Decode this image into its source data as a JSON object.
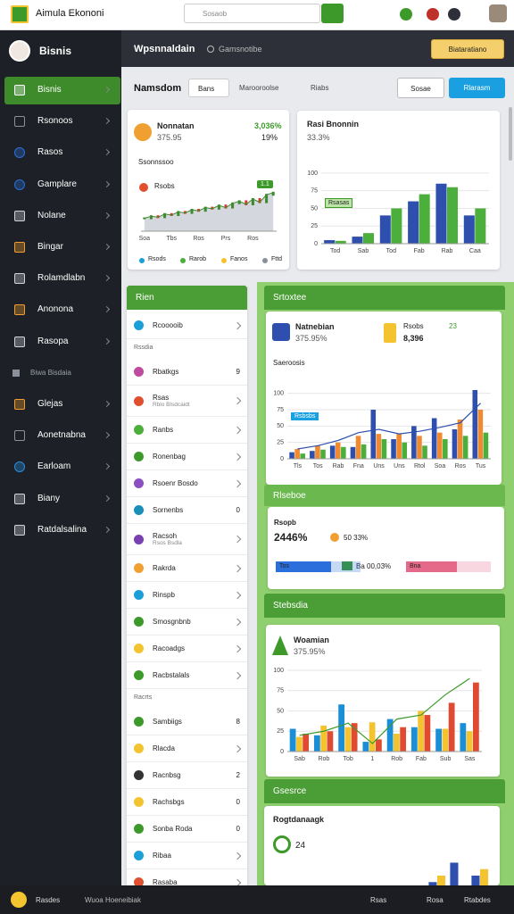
{
  "topbar": {
    "app_title": "Aimula Ekononi",
    "search_placeholder": "Sosaob"
  },
  "sidebar": {
    "brand": "Bisnis",
    "items": [
      {
        "label": "Bisnis",
        "active": true,
        "icon_color": "#ffffff"
      },
      {
        "label": "Rsonoos",
        "icon_color": "#8a8f99"
      },
      {
        "label": "Rasos",
        "icon_color": "#2a6fdb"
      },
      {
        "label": "Gamplare",
        "icon_color": "#2a6fdb"
      },
      {
        "label": "Nolane",
        "icon_color": "#cfd3da"
      },
      {
        "label": "Bingar",
        "icon_color": "#f0a030"
      },
      {
        "label": "Rolamdlabn",
        "icon_color": "#cfd3da"
      },
      {
        "label": "Anonona",
        "icon_color": "#f0a030"
      },
      {
        "label": "Rasopa",
        "icon_color": "#cfd3da"
      },
      {
        "label": "Biwa Bisdaia",
        "section": true,
        "icon_color": "#8a8f99"
      },
      {
        "label": "Glejas",
        "icon_color": "#f0a030"
      },
      {
        "label": "Aonetnabna",
        "icon_color": "#8a8f99"
      },
      {
        "label": "Earloam",
        "icon_color": "#2a8fe0"
      },
      {
        "label": "Biany",
        "icon_color": "#cfd3da"
      },
      {
        "label": "Ratdalsalina",
        "icon_color": "#cfd3da"
      }
    ]
  },
  "header": {
    "title": "Wpsnnaldain",
    "subtitle": "Gamsnotibe",
    "button": "Biataratiano"
  },
  "toolbar": {
    "title": "Namsdom",
    "dropdown": "Bans",
    "filter": "Marooroolse",
    "link": "Riabs",
    "button_1": "Sosae",
    "button_2": "Rlarasm"
  },
  "card_stock": {
    "title": "Nonnatan",
    "value": "375.95",
    "change": "3,036%",
    "change_2": "19%",
    "subtitle": "Ssonnssoo",
    "chart_label": "Rsobs",
    "chart": {
      "type": "line",
      "color": "#3c8a2e",
      "annotation": "1.1",
      "categories": [
        "Soa",
        null,
        null,
        null,
        "Tbs",
        null,
        null,
        null,
        "Ros",
        null,
        null,
        null,
        "Prs",
        null,
        null,
        null,
        "Ros",
        null,
        null,
        null
      ],
      "values": [
        12,
        14,
        13,
        16,
        15,
        18,
        17,
        20,
        19,
        22,
        21,
        24,
        22,
        26,
        28,
        25,
        30,
        27,
        34,
        36
      ],
      "ylim": [
        0,
        45
      ]
    },
    "legend": [
      {
        "label": "Rsods",
        "color": "#1a9fd8"
      },
      {
        "label": "Rarob",
        "color": "#4caf3c"
      },
      {
        "label": "Fanos",
        "color": "#f4c430"
      },
      {
        "label": "Fttd",
        "color": "#8a8f99"
      }
    ]
  },
  "card_bars": {
    "title": "Rasi Bnonnin",
    "value": "33.3%",
    "chart": {
      "type": "bar",
      "annotation": "Rsasas",
      "categories": [
        "Tod",
        "Sab",
        "Tod",
        "Fab",
        "Rab",
        "Caa"
      ],
      "series": [
        {
          "color": "#2f4fae",
          "values": [
            5,
            10,
            40,
            60,
            85,
            40
          ]
        },
        {
          "color": "#4caf3c",
          "values": [
            4,
            15,
            50,
            70,
            80,
            50
          ]
        }
      ],
      "ylim": [
        0,
        110
      ],
      "yticks": [
        0,
        25,
        50,
        75,
        100
      ]
    }
  },
  "list_panel": {
    "title": "Rien",
    "items": [
      {
        "label": "Rcooooib",
        "color": "#1a9fd8"
      },
      {
        "label": "Rssdia",
        "section": true
      },
      {
        "label": "Rbatkgs",
        "meta": "9",
        "color": "#c04aa0"
      },
      {
        "label": "Rsas",
        "sub": "Rblo Blsdcaidt",
        "color": "#e05030"
      },
      {
        "label": "Ranbs",
        "color": "#4caf3c"
      },
      {
        "label": "Ronenbag",
        "color": "#3d9a2a"
      },
      {
        "label": "Rsoenr Bosdo",
        "color": "#8a4fc0"
      },
      {
        "label": "Sornenbs",
        "meta": "0",
        "color": "#1a8fb8"
      },
      {
        "label": "Racsoh",
        "sub": "Rsos Bsdla",
        "color": "#7a3fb0"
      },
      {
        "label": "Rakrda",
        "color": "#f0a030"
      },
      {
        "label": "Rinspb",
        "color": "#1a9fd8"
      },
      {
        "label": "Smosgnbnb",
        "color": "#3d9a2a"
      },
      {
        "label": "Racoadgs",
        "color": "#f4c430"
      },
      {
        "label": "Racbstalals",
        "color": "#3d9a2a"
      },
      {
        "label": "Racrts",
        "section": true
      },
      {
        "label": "Sambiigs",
        "meta": "8",
        "color": "#3d9a2a"
      },
      {
        "label": "Rlacda",
        "color": "#f4c430"
      },
      {
        "label": "Racnbsg",
        "meta": "2",
        "color": "#333333"
      },
      {
        "label": "Rachsbgs",
        "meta": "0",
        "color": "#f4c430"
      },
      {
        "label": "Sonba Roda",
        "meta": "0",
        "color": "#3d9a2a"
      },
      {
        "label": "Ribaa",
        "color": "#1a9fd8"
      },
      {
        "label": "Rasaba",
        "color": "#e05030"
      }
    ]
  },
  "panel_trend": {
    "title": "Srtoxtee",
    "card_title": "Natnebian",
    "card_value": "375.95%",
    "info_label": "Rsobs",
    "info_value": "8,396",
    "info_meta": "23",
    "chart_title": "Saeroosis",
    "chart": {
      "type": "bar",
      "annotation": "Rsbsbs",
      "categories": [
        "Tls",
        "Tos",
        "Rab",
        "Fna",
        "Uns",
        "Uns",
        "Rtol",
        "Soa",
        "Ros",
        "Tus"
      ],
      "series": [
        {
          "color": "#2f4fae",
          "values": [
            10,
            12,
            20,
            18,
            75,
            30,
            50,
            62,
            45,
            105
          ]
        },
        {
          "color": "#f08a30",
          "values": [
            15,
            20,
            25,
            35,
            38,
            38,
            35,
            40,
            60,
            75
          ]
        },
        {
          "color": "#4caf3c",
          "values": [
            8,
            14,
            18,
            22,
            30,
            25,
            20,
            30,
            35,
            40
          ]
        },
        {
          "type": "line",
          "color": "#2f4fae",
          "values": [
            15,
            20,
            28,
            40,
            45,
            38,
            42,
            48,
            55,
            85
          ]
        }
      ],
      "ylim": [
        0,
        120
      ],
      "yticks": [
        0,
        25,
        50,
        75,
        100
      ]
    }
  },
  "panel_stats": {
    "title": "Rlseboe",
    "label": "Rsopb",
    "value": "2446%",
    "value_2": "50 33%",
    "value_3": "Ba 00,03%",
    "progress": [
      {
        "label": "Tos",
        "value": 65,
        "color": "#2a6fdb"
      },
      {
        "label": "Bna",
        "value": 60,
        "color": "#e56a8a"
      }
    ]
  },
  "panel_chart": {
    "title": "Stebsdia",
    "card_title": "Woamian",
    "card_value": "375.95%",
    "chart": {
      "type": "bar",
      "categories": [
        "Sab",
        "Rob",
        "Tob",
        "1",
        "Rob",
        "Fab",
        "Sub",
        "Sas"
      ],
      "series": [
        {
          "color": "#1a8fd8",
          "values": [
            28,
            20,
            58,
            12,
            40,
            30,
            28,
            35
          ]
        },
        {
          "color": "#f4c430",
          "values": [
            18,
            32,
            30,
            36,
            22,
            50,
            28,
            25
          ]
        },
        {
          "color": "#e04a30",
          "values": [
            22,
            25,
            35,
            15,
            30,
            45,
            60,
            85
          ]
        },
        {
          "type": "line",
          "color": "#3d9a2a",
          "values": [
            20,
            25,
            35,
            10,
            40,
            45,
            70,
            90
          ]
        }
      ],
      "ylim": [
        0,
        100
      ],
      "yticks": [
        0,
        25,
        50,
        75,
        100
      ]
    }
  },
  "panel_bottom": {
    "title": "Gsesrce",
    "card_title": "Rogtdanaagk",
    "value": "24",
    "chart": {
      "type": "bar",
      "categories": [
        null,
        null,
        null,
        null,
        null
      ],
      "series": [
        {
          "color": "#2f4fae",
          "values": [
            5,
            8,
            15,
            30,
            20
          ]
        },
        {
          "color": "#f4c430",
          "values": [
            3,
            10,
            20,
            12,
            25
          ]
        }
      ],
      "ylim": [
        0,
        40
      ]
    }
  },
  "bottombar": {
    "left": "Rasdes",
    "search": "Wuoa Hoeneibiak",
    "right_1": "Rsas",
    "right_2": "Rosa",
    "right_3": "Rtabdes"
  }
}
